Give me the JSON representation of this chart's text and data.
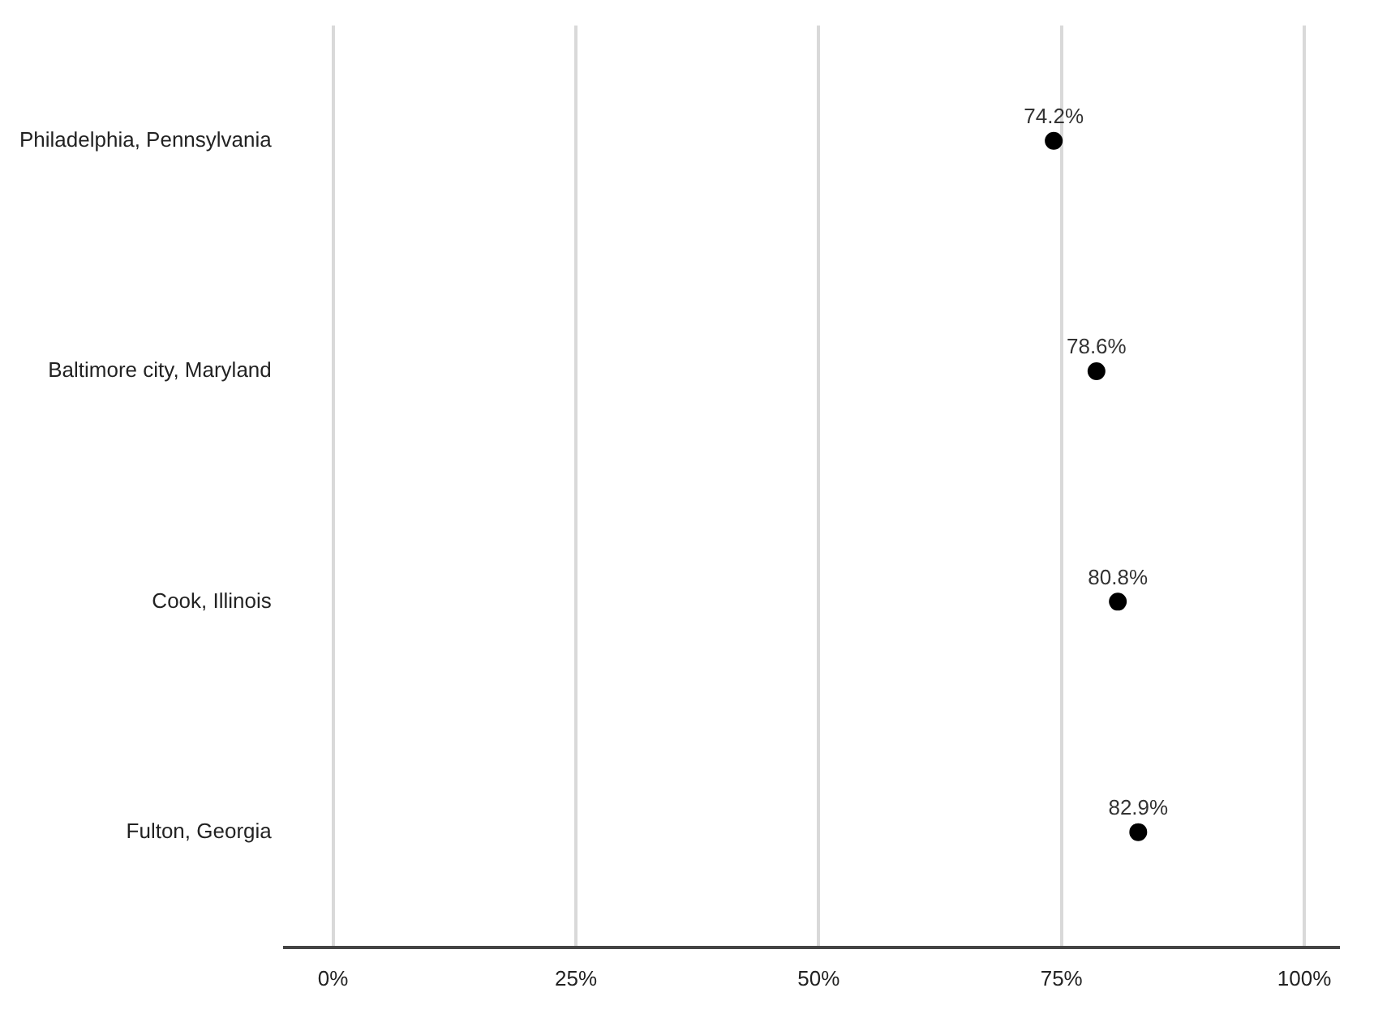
{
  "chart_data": {
    "type": "scatter",
    "orientation": "horizontal",
    "categories": [
      "Philadelphia, Pennsylvania",
      "Baltimore city, Maryland",
      "Cook, Illinois",
      "Fulton, Georgia"
    ],
    "series": [
      {
        "color": "#000000",
        "values": [
          74.2,
          78.6,
          80.8,
          82.9
        ],
        "value_labels": [
          "74.2%",
          "78.6%",
          "80.8%",
          "82.9%"
        ]
      }
    ],
    "xlim": [
      -5,
      103.5
    ],
    "xticks": [
      {
        "value": 0,
        "label": "0%"
      },
      {
        "value": 25,
        "label": "25%"
      },
      {
        "value": 50,
        "label": "50%"
      },
      {
        "value": 75,
        "label": "75%"
      },
      {
        "value": 100,
        "label": "100%"
      }
    ],
    "grid": "x",
    "legend": false,
    "marker": "circle"
  }
}
